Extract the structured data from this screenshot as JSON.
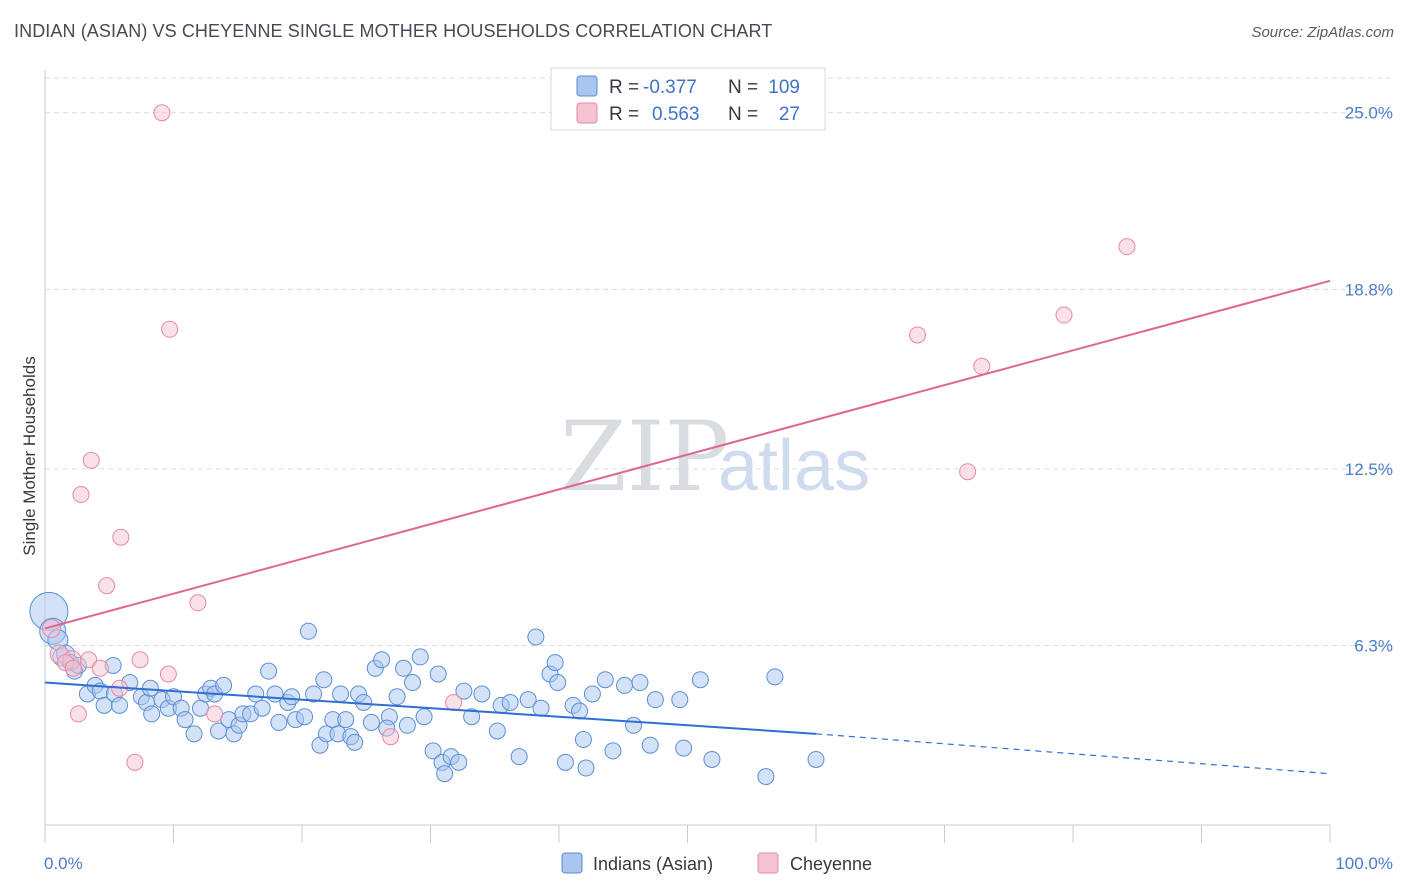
{
  "title": "INDIAN (ASIAN) VS CHEYENNE SINGLE MOTHER HOUSEHOLDS CORRELATION CHART",
  "source": "Source: ZipAtlas.com",
  "watermark": {
    "zip": "ZIP",
    "atlas": "atlas"
  },
  "legend": {
    "rows": [
      {
        "r_label": "R =",
        "r_value": "-0.377",
        "n_label": "N =",
        "n_value": "109"
      },
      {
        "r_label": "R =",
        "r_value": "0.563",
        "n_label": "N =",
        "n_value": "27"
      }
    ]
  },
  "bottom_legend": [
    "Indians (Asian)",
    "Cheyenne"
  ],
  "colors": {
    "blue_fill": "#a9c6ef",
    "blue_stroke": "#5b8fd6",
    "blue_line": "#2f6fd1",
    "pink_fill": "#f6c3d2",
    "pink_stroke": "#e68aa6",
    "pink_line": "#e0668f",
    "grid": "#d8dce2",
    "tick_text": "#4a7cc9"
  },
  "chart_data": {
    "type": "scatter",
    "title": "INDIAN (ASIAN) VS CHEYENNE SINGLE MOTHER HOUSEHOLDS CORRELATION CHART",
    "xlabel": "",
    "ylabel": "Single Mother Households",
    "xlim": [
      0,
      100
    ],
    "ylim": [
      0,
      26.5
    ],
    "x_tick_labels": [
      "0.0%",
      "100.0%"
    ],
    "y_ticks": [
      6.3,
      12.5,
      18.8,
      25.0
    ],
    "y_tick_labels": [
      "6.3%",
      "12.5%",
      "18.8%",
      "25.0%"
    ],
    "grid": true,
    "series": [
      {
        "name": "Indians (Asian)",
        "points": [
          [
            0.3,
            7.5,
            1.9
          ],
          [
            0.6,
            6.8,
            1.3
          ],
          [
            1.0,
            6.5,
            1.0
          ],
          [
            1.3,
            5.9,
            0.9
          ],
          [
            1.6,
            6.0,
            0.9
          ],
          [
            2.0,
            5.7,
            0.8
          ],
          [
            2.3,
            5.4,
            0.8
          ],
          [
            2.6,
            5.6,
            0.8
          ],
          [
            3.3,
            4.6,
            0.8
          ],
          [
            3.9,
            4.9,
            0.8
          ],
          [
            4.3,
            4.7,
            0.8
          ],
          [
            5.4,
            4.6,
            0.8
          ],
          [
            4.6,
            4.2,
            0.8
          ],
          [
            5.8,
            4.2,
            0.8
          ],
          [
            5.3,
            5.6,
            0.8
          ],
          [
            6.6,
            5.0,
            0.8
          ],
          [
            7.5,
            4.5,
            0.8
          ],
          [
            7.9,
            4.3,
            0.8
          ],
          [
            8.2,
            4.8,
            0.8
          ],
          [
            8.3,
            3.9,
            0.8
          ],
          [
            9.1,
            4.4,
            0.8
          ],
          [
            9.6,
            4.1,
            0.8
          ],
          [
            10.0,
            4.5,
            0.8
          ],
          [
            10.6,
            4.1,
            0.8
          ],
          [
            10.9,
            3.7,
            0.8
          ],
          [
            11.6,
            3.2,
            0.8
          ],
          [
            12.1,
            4.1,
            0.8
          ],
          [
            12.5,
            4.6,
            0.8
          ],
          [
            12.9,
            4.8,
            0.8
          ],
          [
            13.2,
            4.6,
            0.8
          ],
          [
            13.5,
            3.3,
            0.8
          ],
          [
            13.9,
            4.9,
            0.8
          ],
          [
            14.3,
            3.7,
            0.8
          ],
          [
            14.7,
            3.2,
            0.8
          ],
          [
            15.1,
            3.5,
            0.8
          ],
          [
            15.4,
            3.9,
            0.8
          ],
          [
            16.0,
            3.9,
            0.8
          ],
          [
            16.4,
            4.6,
            0.8
          ],
          [
            16.9,
            4.1,
            0.8
          ],
          [
            17.4,
            5.4,
            0.8
          ],
          [
            17.9,
            4.6,
            0.8
          ],
          [
            18.2,
            3.6,
            0.8
          ],
          [
            18.9,
            4.3,
            0.8
          ],
          [
            19.2,
            4.5,
            0.8
          ],
          [
            19.5,
            3.7,
            0.8
          ],
          [
            20.2,
            3.8,
            0.8
          ],
          [
            20.5,
            6.8,
            0.8
          ],
          [
            20.9,
            4.6,
            0.8
          ],
          [
            21.4,
            2.8,
            0.8
          ],
          [
            21.7,
            5.1,
            0.8
          ],
          [
            21.9,
            3.2,
            0.8
          ],
          [
            22.4,
            3.7,
            0.8
          ],
          [
            22.8,
            3.2,
            0.8
          ],
          [
            23.4,
            3.7,
            0.8
          ],
          [
            23.8,
            3.1,
            0.8
          ],
          [
            24.4,
            4.6,
            0.8
          ],
          [
            24.1,
            2.9,
            0.8
          ],
          [
            24.8,
            4.3,
            0.8
          ],
          [
            25.4,
            3.6,
            0.8
          ],
          [
            25.7,
            5.5,
            0.8
          ],
          [
            26.2,
            5.8,
            0.8
          ],
          [
            26.8,
            3.8,
            0.8
          ],
          [
            26.6,
            3.4,
            0.8
          ],
          [
            27.4,
            4.5,
            0.8
          ],
          [
            27.9,
            5.5,
            0.8
          ],
          [
            28.2,
            3.5,
            0.8
          ],
          [
            28.6,
            5.0,
            0.8
          ],
          [
            29.2,
            5.9,
            0.8
          ],
          [
            29.5,
            3.8,
            0.8
          ],
          [
            30.2,
            2.6,
            0.8
          ],
          [
            30.6,
            5.3,
            0.8
          ],
          [
            30.9,
            2.2,
            0.8
          ],
          [
            31.6,
            2.4,
            0.8
          ],
          [
            32.2,
            2.2,
            0.8
          ],
          [
            31.1,
            1.8,
            0.8
          ],
          [
            34.0,
            4.6,
            0.8
          ],
          [
            33.2,
            3.8,
            0.8
          ],
          [
            35.2,
            3.3,
            0.8
          ],
          [
            35.5,
            4.2,
            0.8
          ],
          [
            36.2,
            4.3,
            0.8
          ],
          [
            36.9,
            2.4,
            0.8
          ],
          [
            37.6,
            4.4,
            0.8
          ],
          [
            38.2,
            6.6,
            0.8
          ],
          [
            38.6,
            4.1,
            0.8
          ],
          [
            39.3,
            5.3,
            0.8
          ],
          [
            39.7,
            5.7,
            0.8
          ],
          [
            39.9,
            5.0,
            0.8
          ],
          [
            40.5,
            2.2,
            0.8
          ],
          [
            41.1,
            4.2,
            0.8
          ],
          [
            41.6,
            4.0,
            0.8
          ],
          [
            41.9,
            3.0,
            0.8
          ],
          [
            42.6,
            4.6,
            0.8
          ],
          [
            43.6,
            5.1,
            0.8
          ],
          [
            44.2,
            2.6,
            0.8
          ],
          [
            45.1,
            4.9,
            0.8
          ],
          [
            45.8,
            3.5,
            0.8
          ],
          [
            46.3,
            5.0,
            0.8
          ],
          [
            47.5,
            4.4,
            0.8
          ],
          [
            47.1,
            2.8,
            0.8
          ],
          [
            49.4,
            4.4,
            0.8
          ],
          [
            49.7,
            2.7,
            0.8
          ],
          [
            51.0,
            5.1,
            0.8
          ],
          [
            51.9,
            2.3,
            0.8
          ],
          [
            56.1,
            1.7,
            0.8
          ],
          [
            56.8,
            5.2,
            0.8
          ],
          [
            60.0,
            2.3,
            0.8
          ],
          [
            42.1,
            2.0,
            0.8
          ],
          [
            32.6,
            4.7,
            0.8
          ],
          [
            23.0,
            4.6,
            0.8
          ]
        ]
      },
      {
        "name": "Cheyenne",
        "points": [
          [
            0.5,
            6.9,
            0.9
          ],
          [
            1.1,
            6.0,
            0.9
          ],
          [
            2.1,
            5.8,
            0.9
          ],
          [
            2.6,
            3.9,
            0.8
          ],
          [
            2.8,
            11.6,
            0.8
          ],
          [
            3.4,
            5.8,
            0.8
          ],
          [
            3.6,
            12.8,
            0.8
          ],
          [
            4.3,
            5.5,
            0.8
          ],
          [
            4.8,
            8.4,
            0.8
          ],
          [
            5.9,
            10.1,
            0.8
          ],
          [
            5.8,
            4.8,
            0.8
          ],
          [
            7.0,
            2.2,
            0.8
          ],
          [
            7.4,
            5.8,
            0.8
          ],
          [
            9.1,
            25.0,
            0.8
          ],
          [
            9.7,
            17.4,
            0.8
          ],
          [
            9.6,
            5.3,
            0.8
          ],
          [
            11.9,
            7.8,
            0.8
          ],
          [
            13.2,
            3.9,
            0.8
          ],
          [
            26.9,
            3.1,
            0.8
          ],
          [
            31.8,
            4.3,
            0.8
          ],
          [
            67.9,
            17.2,
            0.8
          ],
          [
            71.8,
            12.4,
            0.8
          ],
          [
            72.9,
            16.1,
            0.8
          ],
          [
            79.3,
            17.9,
            0.8
          ],
          [
            84.2,
            20.3,
            0.8
          ],
          [
            1.6,
            5.7,
            0.8
          ],
          [
            2.2,
            5.5,
            0.8
          ]
        ]
      }
    ],
    "trendlines": [
      {
        "series": "Indians (Asian)",
        "x": [
          0,
          60
        ],
        "y": [
          5.0,
          3.2
        ],
        "dashed_extension": {
          "x": [
            60,
            100
          ],
          "y": [
            3.2,
            1.8
          ]
        }
      },
      {
        "series": "Cheyenne",
        "x": [
          0,
          100
        ],
        "y": [
          6.9,
          19.1
        ]
      }
    ]
  }
}
